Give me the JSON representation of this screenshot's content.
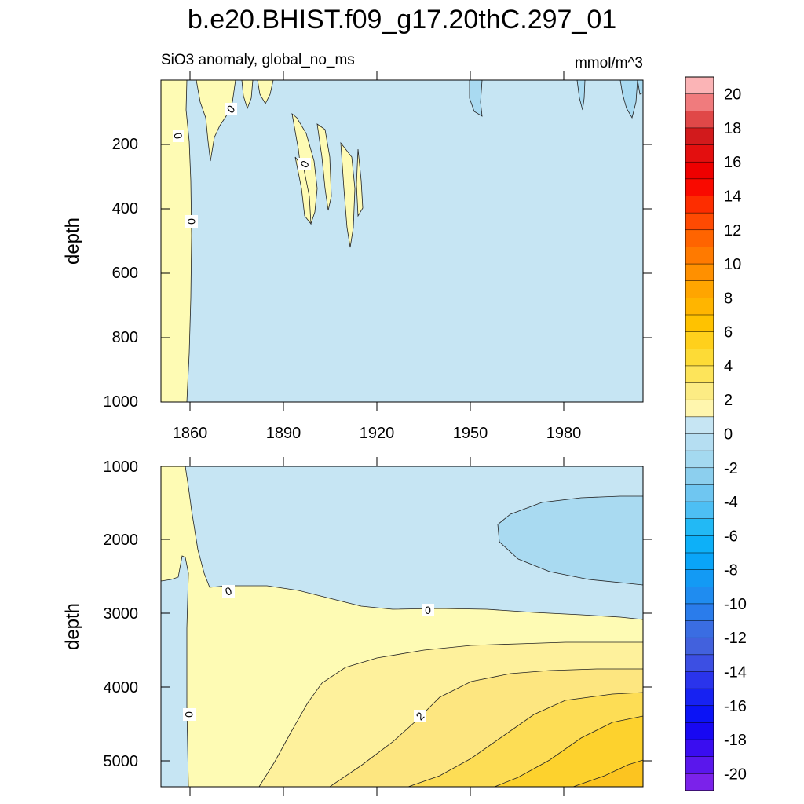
{
  "chart_data": {
    "type": "contour",
    "title": "b.e20.BHIST.f09_g17.20thC.297_01",
    "subtitle_left": "SiO3 anomaly, global_no_ms",
    "subtitle_right": "mmol/m^3",
    "x_axis": {
      "ticks": [
        "1860",
        "1890",
        "1920",
        "1950",
        "1980"
      ],
      "xlim": [
        1850,
        2005
      ]
    },
    "panels": [
      {
        "name": "upper",
        "ylabel": "depth",
        "ylim": [
          0,
          1000
        ],
        "y_ticks": [
          "200",
          "400",
          "600",
          "800",
          "1000"
        ],
        "contour_labels": [
          "0",
          "0",
          "0",
          "0"
        ]
      },
      {
        "name": "lower",
        "ylabel": "depth",
        "ylim": [
          1000,
          5375
        ],
        "y_ticks": [
          "1000",
          "2000",
          "3000",
          "4000",
          "5000"
        ],
        "contour_labels": [
          "0",
          "0",
          "0",
          "2"
        ]
      }
    ],
    "colorbar": {
      "levels": [
        "20",
        "18",
        "16",
        "14",
        "12",
        "10",
        "8",
        "6",
        "4",
        "2",
        "0",
        "-2",
        "-4",
        "-6",
        "-8",
        "-10",
        "-12",
        "-14",
        "-16",
        "-18",
        "-20"
      ],
      "colors": [
        "#fbb4b6",
        "#f07b7d",
        "#e04848",
        "#d21a1c",
        "#e30f0f",
        "#ee0000",
        "#f90a00",
        "#fd2d00",
        "#ff4a02",
        "#ff6400",
        "#ff7a00",
        "#ff9000",
        "#ffa500",
        "#ffb500",
        "#ffc200",
        "#ffd01c",
        "#fddb36",
        "#fde45a",
        "#fcec84",
        "#fff6ae",
        "#c6e5f3",
        "#b5def2",
        "#a4d9f0",
        "#8ccfee",
        "#6fc6f1",
        "#4dbff4",
        "#22b9f5",
        "#0db0f8",
        "#0aa5f8",
        "#139af4",
        "#1f8cf0",
        "#2a7ceb",
        "#3a6de2",
        "#4261dd",
        "#3c4fe3",
        "#2a34ec",
        "#1722f2",
        "#0b13f6",
        "#1808f2",
        "#3a0df0",
        "#5a17ec",
        "#7b22ea"
      ]
    },
    "fill_colors": {
      "neg_0_to_-2": "#c6e5f3",
      "neg_-2_to_-4": "#a9daf1",
      "pos_0_to_1": "#fefbb4",
      "pos_1_to_2": "#fef19c",
      "pos_2_to_3": "#fde680",
      "pos_3_to_4": "#fddd55",
      "pos_4_to_5": "#fdd22d",
      "pos_5_to_6": "#fcc420"
    }
  }
}
